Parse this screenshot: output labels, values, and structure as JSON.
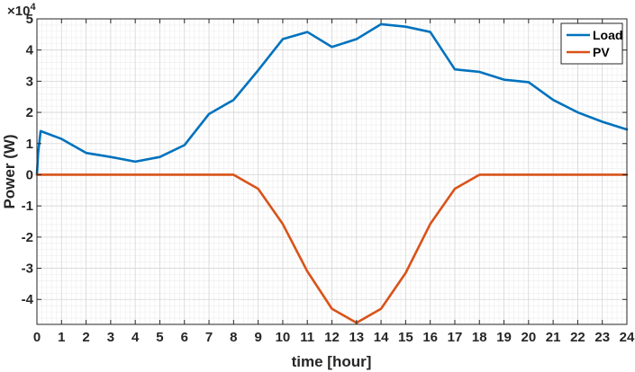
{
  "chart_data": {
    "type": "line",
    "xlabel": "time [hour]",
    "ylabel": "Power (W)",
    "y_multiplier_label": "×10",
    "y_multiplier_exponent": "4",
    "xlim": [
      0,
      24
    ],
    "ylim": [
      -48000,
      50000
    ],
    "x_ticks": [
      0,
      1,
      2,
      3,
      4,
      5,
      6,
      7,
      8,
      9,
      10,
      11,
      12,
      13,
      14,
      15,
      16,
      17,
      18,
      19,
      20,
      21,
      22,
      23,
      24
    ],
    "y_ticks": [
      -40000,
      -30000,
      -20000,
      -10000,
      0,
      10000,
      20000,
      30000,
      40000,
      50000
    ],
    "y_tick_labels": [
      "-4",
      "-3",
      "-2",
      "-1",
      "0",
      "1",
      "2",
      "3",
      "4",
      "5"
    ],
    "grid": true,
    "minor_grid": true,
    "legend_position": "top-right",
    "series": [
      {
        "name": "Load",
        "color": "#0072BD",
        "x": [
          0,
          0.05,
          0.15,
          1,
          2,
          3,
          4,
          5,
          6,
          7,
          8,
          9,
          10,
          11,
          12,
          13,
          14,
          15,
          16,
          17,
          18,
          19,
          20,
          21,
          22,
          23,
          24
        ],
        "y": [
          0,
          7000,
          14000,
          11500,
          7000,
          5700,
          4200,
          5700,
          9500,
          19500,
          24000,
          33500,
          43500,
          45800,
          41000,
          43500,
          48300,
          47500,
          45800,
          33800,
          33000,
          30500,
          29700,
          24000,
          20000,
          17000,
          14500
        ]
      },
      {
        "name": "PV",
        "color": "#D95319",
        "x": [
          0,
          1,
          2,
          3,
          4,
          5,
          6,
          7,
          8,
          9,
          10,
          11,
          12,
          13,
          14,
          15,
          16,
          17,
          18,
          19,
          20,
          21,
          22,
          23,
          24
        ],
        "y": [
          0,
          0,
          0,
          0,
          0,
          0,
          0,
          0,
          0,
          -4500,
          -15800,
          -31000,
          -43000,
          -47500,
          -43000,
          -31500,
          -15800,
          -4500,
          0,
          0,
          0,
          0,
          0,
          0,
          0
        ]
      }
    ]
  }
}
